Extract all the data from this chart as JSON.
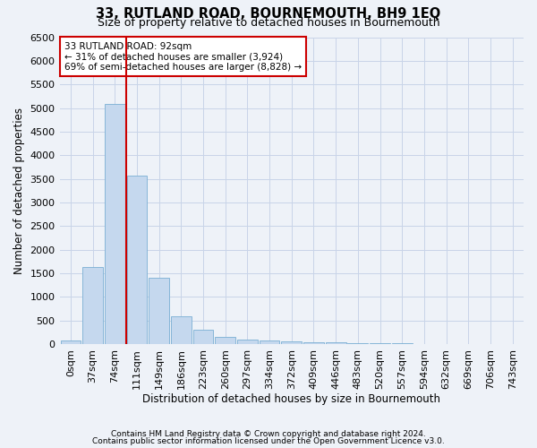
{
  "title": "33, RUTLAND ROAD, BOURNEMOUTH, BH9 1EQ",
  "subtitle": "Size of property relative to detached houses in Bournemouth",
  "xlabel": "Distribution of detached houses by size in Bournemouth",
  "ylabel": "Number of detached properties",
  "footnote1": "Contains HM Land Registry data © Crown copyright and database right 2024.",
  "footnote2": "Contains public sector information licensed under the Open Government Licence v3.0.",
  "bar_labels": [
    "0sqm",
    "37sqm",
    "74sqm",
    "111sqm",
    "149sqm",
    "186sqm",
    "223sqm",
    "260sqm",
    "297sqm",
    "334sqm",
    "372sqm",
    "409sqm",
    "446sqm",
    "483sqm",
    "520sqm",
    "557sqm",
    "594sqm",
    "632sqm",
    "669sqm",
    "706sqm",
    "743sqm"
  ],
  "bar_values": [
    75,
    1630,
    5080,
    3570,
    1400,
    580,
    295,
    145,
    95,
    75,
    55,
    40,
    30,
    20,
    15,
    10,
    8,
    5,
    3,
    2,
    1
  ],
  "bar_color": "#c5d8ee",
  "bar_edge_color": "#7aafd4",
  "grid_color": "#c8d4e8",
  "vline_x": 2.5,
  "vline_color": "#cc0000",
  "annotation_text": "33 RUTLAND ROAD: 92sqm\n← 31% of detached houses are smaller (3,924)\n69% of semi-detached houses are larger (8,828) →",
  "annotation_box_color": "#ffffff",
  "annotation_box_edge": "#cc0000",
  "ylim": [
    0,
    6500
  ],
  "yticks": [
    0,
    500,
    1000,
    1500,
    2000,
    2500,
    3000,
    3500,
    4000,
    4500,
    5000,
    5500,
    6000,
    6500
  ],
  "bg_color": "#eef2f8",
  "title_fontsize": 10.5,
  "subtitle_fontsize": 9,
  "ylabel_fontsize": 8.5,
  "xlabel_fontsize": 8.5,
  "tick_fontsize": 8,
  "annot_fontsize": 7.5,
  "footnote_fontsize": 6.5
}
